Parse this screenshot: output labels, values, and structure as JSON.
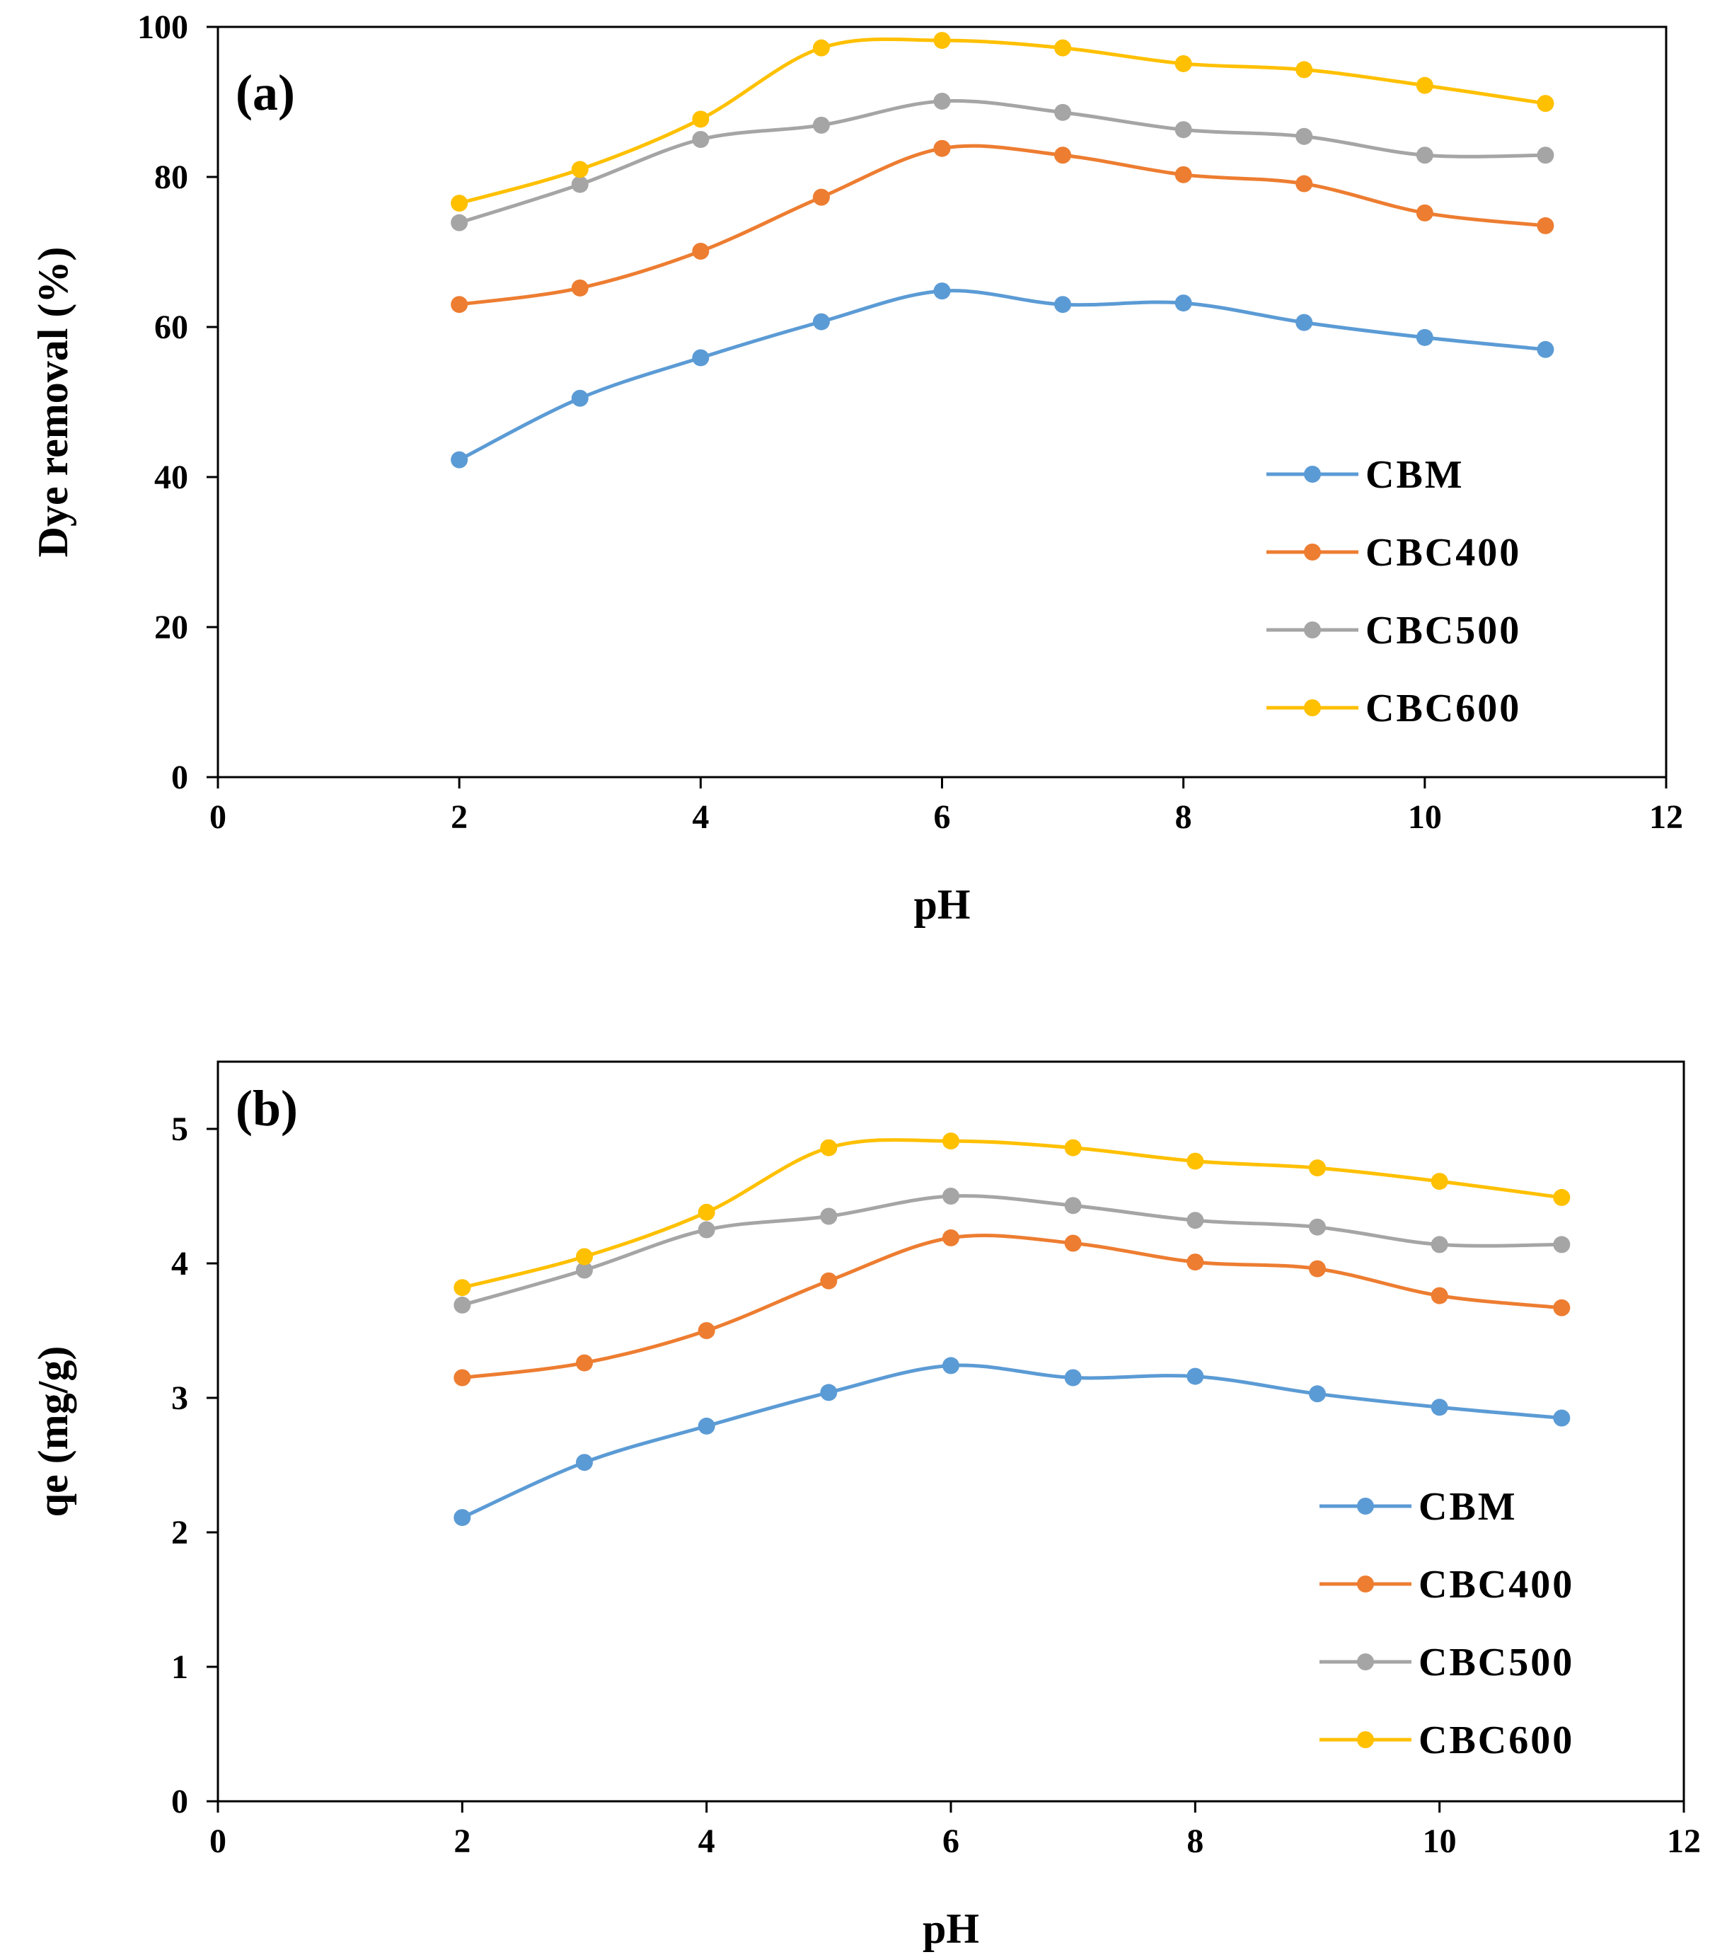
{
  "chart_data": [
    {
      "type": "line",
      "panel_label": "(a)",
      "xlabel": "pH",
      "ylabel": "Dye removal (%)",
      "xlim": [
        0,
        12
      ],
      "ylim": [
        0,
        100
      ],
      "x_ticks": [
        "0",
        "2",
        "4",
        "6",
        "8",
        "10",
        "12"
      ],
      "y_ticks": [
        "0",
        "20",
        "40",
        "60",
        "80",
        "100"
      ],
      "grid": false,
      "smooth": true,
      "legend_position": "bottom-right",
      "x": [
        2,
        3,
        4,
        5,
        6,
        7,
        8,
        9,
        10,
        11
      ],
      "series": [
        {
          "name": "CBM",
          "color": "#5B9BD5",
          "values": [
            42.3,
            50.5,
            55.9,
            60.7,
            64.8,
            63.0,
            63.2,
            60.6,
            58.6,
            57.0
          ]
        },
        {
          "name": "CBC400",
          "color": "#ED7D31",
          "values": [
            63.0,
            65.2,
            70.1,
            77.3,
            83.8,
            82.9,
            80.3,
            79.1,
            75.2,
            73.5
          ]
        },
        {
          "name": "CBC500",
          "color": "#A5A5A5",
          "values": [
            73.9,
            79.0,
            85.0,
            86.9,
            90.1,
            88.6,
            86.3,
            85.4,
            82.9,
            82.9
          ]
        },
        {
          "name": "CBC600",
          "color": "#FFC000",
          "values": [
            76.5,
            81.0,
            87.7,
            97.2,
            98.2,
            97.2,
            95.1,
            94.3,
            92.2,
            89.8
          ]
        }
      ]
    },
    {
      "type": "line",
      "panel_label": "(b)",
      "xlabel": "pH",
      "ylabel": "qe (mg/g)",
      "xlim": [
        0,
        12
      ],
      "ylim": [
        0,
        5.5
      ],
      "x_ticks": [
        "0",
        "2",
        "4",
        "6",
        "8",
        "10",
        "12"
      ],
      "y_ticks": [
        "0",
        "1",
        "2",
        "3",
        "4",
        "5"
      ],
      "grid": false,
      "smooth": true,
      "legend_position": "bottom-right",
      "x": [
        2,
        3,
        4,
        5,
        6,
        7,
        8,
        9,
        10,
        11
      ],
      "series": [
        {
          "name": "CBM",
          "color": "#5B9BD5",
          "values": [
            2.11,
            2.52,
            2.79,
            3.04,
            3.24,
            3.15,
            3.16,
            3.03,
            2.93,
            2.85
          ]
        },
        {
          "name": "CBC400",
          "color": "#ED7D31",
          "values": [
            3.15,
            3.26,
            3.5,
            3.87,
            4.19,
            4.15,
            4.01,
            3.96,
            3.76,
            3.67
          ]
        },
        {
          "name": "CBC500",
          "color": "#A5A5A5",
          "values": [
            3.69,
            3.95,
            4.25,
            4.35,
            4.5,
            4.43,
            4.32,
            4.27,
            4.14,
            4.14
          ]
        },
        {
          "name": "CBC600",
          "color": "#FFC000",
          "values": [
            3.82,
            4.05,
            4.38,
            4.86,
            4.91,
            4.86,
            4.76,
            4.71,
            4.61,
            4.49
          ]
        }
      ]
    }
  ]
}
